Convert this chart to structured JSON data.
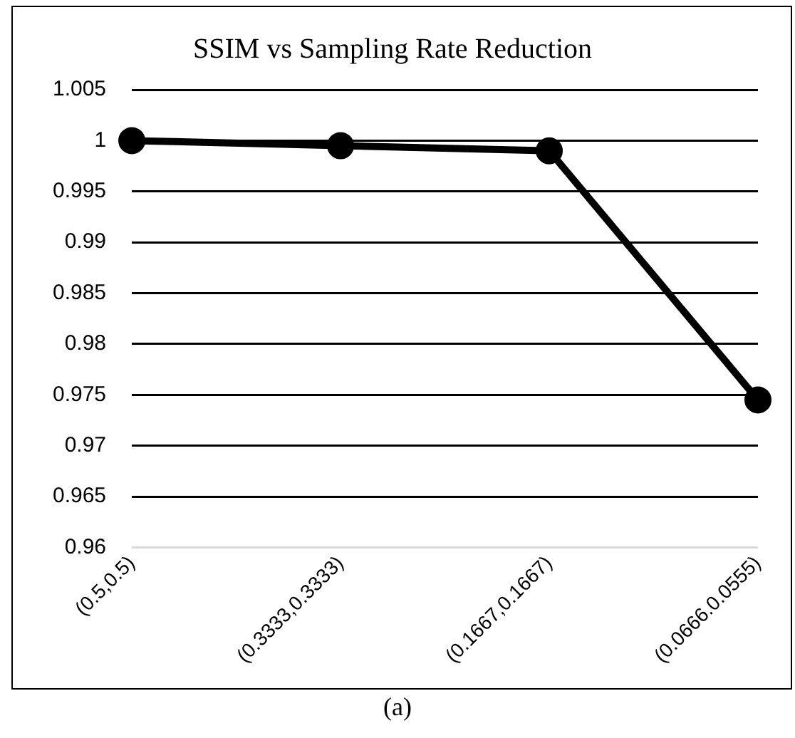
{
  "chart_data": {
    "type": "line",
    "title": "SSIM vs Sampling Rate Reduction",
    "categories": [
      "(0.5,0.5)",
      "(0.3333,0.3333)",
      "(0.1667,0.1667)",
      "(0.0666.0.0555)"
    ],
    "series": [
      {
        "color": "#000000",
        "values": [
          1.0,
          0.9995,
          0.999,
          0.9745
        ]
      }
    ],
    "ylim": [
      0.96,
      1.005
    ],
    "yticks": [
      0.96,
      0.965,
      0.97,
      0.975,
      0.98,
      0.985,
      0.99,
      0.995,
      1,
      1.005
    ],
    "grid": "y",
    "legend": false,
    "marker": "circle",
    "line_style": "solid",
    "annotations": [
      "(a)"
    ]
  }
}
